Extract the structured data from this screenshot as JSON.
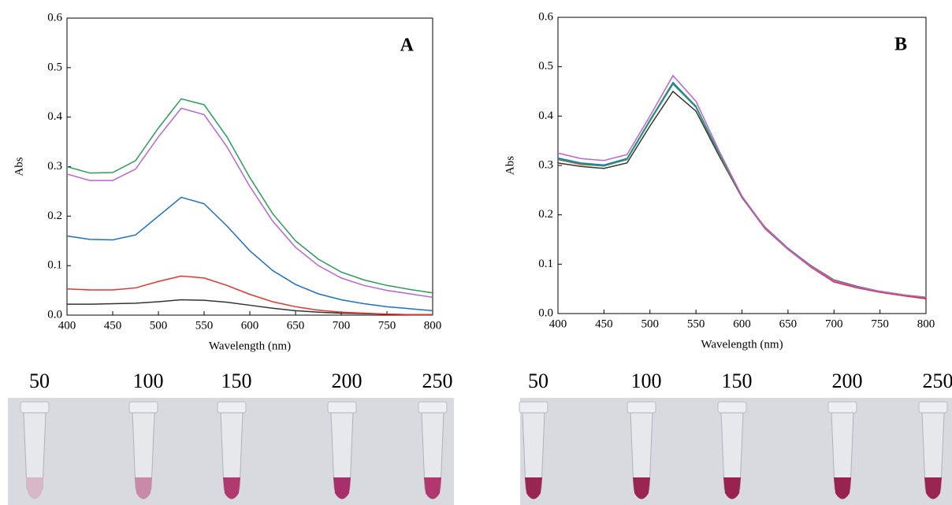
{
  "chart_data": [
    {
      "type": "line",
      "annotation": "A",
      "xlabel": "Wavelength (nm)",
      "ylabel": "Abs",
      "x": [
        400,
        425,
        450,
        475,
        500,
        525,
        550,
        575,
        600,
        625,
        650,
        675,
        700,
        725,
        750,
        775,
        800
      ],
      "xlim": [
        400,
        800
      ],
      "xticks": [
        400,
        450,
        500,
        550,
        600,
        650,
        700,
        750,
        800
      ],
      "ylim": [
        0,
        0.6
      ],
      "yticks": [
        {
          "value": 0,
          "label": "0.0"
        },
        0.1,
        0.2,
        0.3,
        0.4,
        0.5,
        0.6
      ],
      "series": [
        {
          "color": "#333333",
          "values": [
            0.022,
            0.022,
            0.023,
            0.024,
            0.027,
            0.031,
            0.03,
            0.026,
            0.02,
            0.014,
            0.009,
            0.006,
            0.004,
            0.003,
            0.002,
            0.001,
            0.001
          ]
        },
        {
          "color": "#e8332a",
          "values": [
            0.053,
            0.051,
            0.051,
            0.055,
            0.068,
            0.079,
            0.075,
            0.06,
            0.042,
            0.027,
            0.017,
            0.01,
            0.006,
            0.004,
            0.002,
            0.001,
            0.001
          ]
        },
        {
          "color": "#1a6fd0",
          "values": [
            0.16,
            0.153,
            0.152,
            0.162,
            0.2,
            0.238,
            0.225,
            0.18,
            0.13,
            0.09,
            0.062,
            0.043,
            0.031,
            0.023,
            0.017,
            0.013,
            0.009
          ]
        },
        {
          "color": "#b866d6",
          "values": [
            0.285,
            0.272,
            0.272,
            0.295,
            0.36,
            0.418,
            0.405,
            0.34,
            0.26,
            0.19,
            0.137,
            0.1,
            0.075,
            0.06,
            0.05,
            0.043,
            0.036
          ]
        },
        {
          "color": "#2a9d5a",
          "values": [
            0.3,
            0.287,
            0.288,
            0.312,
            0.378,
            0.437,
            0.425,
            0.36,
            0.278,
            0.205,
            0.15,
            0.113,
            0.087,
            0.071,
            0.06,
            0.052,
            0.045
          ]
        }
      ]
    },
    {
      "type": "line",
      "annotation": "B",
      "xlabel": "Wavelength (nm)",
      "ylabel": "Abs",
      "x": [
        400,
        425,
        450,
        475,
        500,
        525,
        550,
        575,
        600,
        625,
        650,
        675,
        700,
        725,
        750,
        775,
        800
      ],
      "xlim": [
        400,
        800
      ],
      "xticks": [
        400,
        450,
        500,
        550,
        600,
        650,
        700,
        750,
        800
      ],
      "ylim": [
        0,
        0.6
      ],
      "yticks": [
        {
          "value": 0,
          "label": "0.0"
        },
        0.1,
        0.2,
        0.3,
        0.4,
        0.5,
        0.6
      ],
      "series": [
        {
          "color": "#333333",
          "values": [
            0.305,
            0.298,
            0.294,
            0.305,
            0.38,
            0.45,
            0.41,
            0.32,
            0.235,
            0.175,
            0.132,
            0.097,
            0.068,
            0.055,
            0.045,
            0.038,
            0.032
          ]
        },
        {
          "color": "#e8332a",
          "values": [
            0.312,
            0.302,
            0.299,
            0.312,
            0.39,
            0.465,
            0.418,
            0.323,
            0.235,
            0.172,
            0.13,
            0.094,
            0.064,
            0.052,
            0.043,
            0.036,
            0.03
          ]
        },
        {
          "color": "#1a6fd0",
          "values": [
            0.315,
            0.305,
            0.301,
            0.314,
            0.392,
            0.468,
            0.42,
            0.325,
            0.237,
            0.174,
            0.131,
            0.096,
            0.067,
            0.054,
            0.045,
            0.038,
            0.033
          ]
        },
        {
          "color": "#2a9d5a",
          "values": [
            0.313,
            0.303,
            0.299,
            0.312,
            0.39,
            0.465,
            0.418,
            0.324,
            0.237,
            0.174,
            0.131,
            0.096,
            0.067,
            0.054,
            0.045,
            0.038,
            0.033
          ]
        },
        {
          "color": "#b866d6",
          "values": [
            0.325,
            0.314,
            0.31,
            0.322,
            0.4,
            0.482,
            0.43,
            0.33,
            0.238,
            0.174,
            0.131,
            0.096,
            0.067,
            0.054,
            0.045,
            0.038,
            0.033
          ]
        }
      ]
    }
  ],
  "photos": [
    {
      "labels": [
        50,
        100,
        150,
        200,
        250
      ]
    },
    {
      "labels": [
        50,
        100,
        150,
        200,
        250
      ]
    }
  ]
}
